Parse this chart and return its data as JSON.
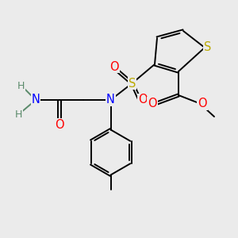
{
  "bg_color": "#ebebeb",
  "atom_colors": {
    "C": "#000000",
    "H": "#5a8a6a",
    "N": "#0000ff",
    "O": "#ff0000",
    "S_thio": "#bbaa00",
    "S_sulfonyl": "#bbaa00"
  },
  "figsize": [
    3.0,
    3.0
  ],
  "dpi": 100,
  "lw": 1.4,
  "fs": 10.5,
  "fs_small": 9.0
}
